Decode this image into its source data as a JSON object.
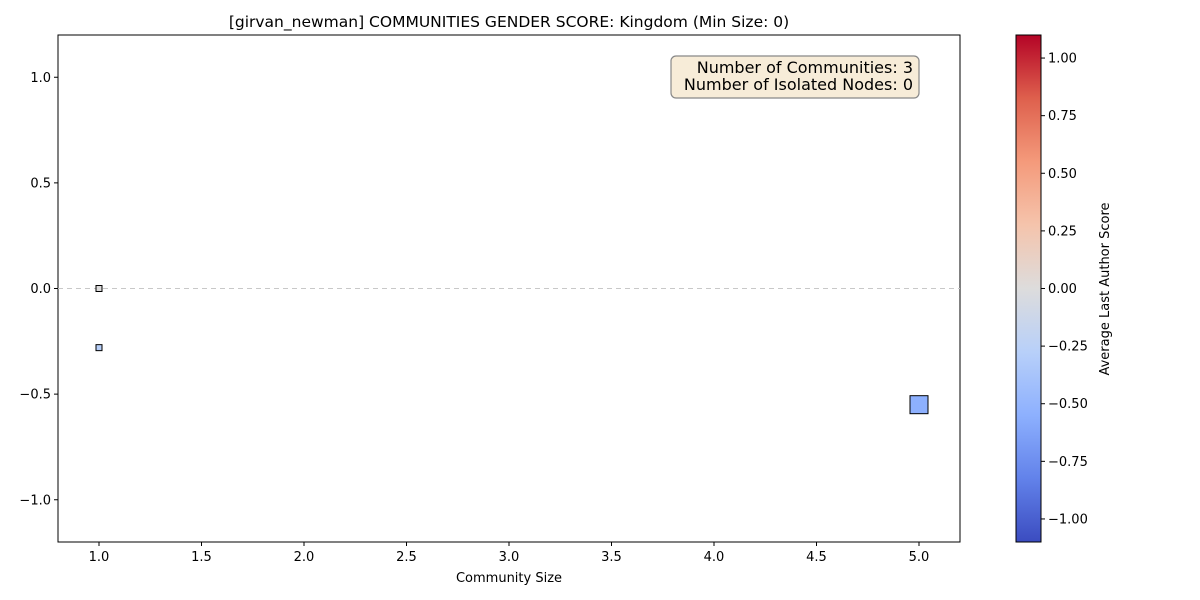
{
  "chart_data": {
    "type": "scatter",
    "title": "[girvan_newman] COMMUNITIES GENDER SCORE: Kingdom (Min Size: 0)",
    "xlabel": "Community Size",
    "ylabel": "",
    "xlim": [
      0.8,
      5.2
    ],
    "ylim": [
      -1.2,
      1.2
    ],
    "x_ticks": [
      1.0,
      1.5,
      2.0,
      2.5,
      3.0,
      3.5,
      4.0,
      4.5,
      5.0
    ],
    "x_tick_labels": [
      "1.0",
      "1.5",
      "2.0",
      "2.5",
      "3.0",
      "3.5",
      "4.0",
      "4.5",
      "5.0"
    ],
    "y_ticks": [
      1.0,
      0.5,
      0.0,
      -0.5,
      -1.0
    ],
    "y_tick_labels": [
      "1.0",
      "0.5",
      "0.0",
      "−0.5",
      "−1.0"
    ],
    "grid": false,
    "reference_line_y": 0.0,
    "marker": "square",
    "points": [
      {
        "x": 1.0,
        "y": 0.0,
        "color_value": 0.0
      },
      {
        "x": 1.0,
        "y": -0.28,
        "color_value": -0.28
      },
      {
        "x": 5.0,
        "y": -0.55,
        "color_value": -0.55
      }
    ],
    "annotations": [
      "Number of Communities: 3",
      "Number of Isolated Nodes: 0"
    ],
    "colorbar": {
      "label": "Average Last Author Score",
      "colormap": "coolwarm",
      "range": [
        -1.1,
        1.1
      ],
      "ticks": [
        1.0,
        0.75,
        0.5,
        0.25,
        0.0,
        -0.25,
        -0.5,
        -0.75,
        -1.0
      ],
      "tick_labels": [
        "1.00",
        "0.75",
        "0.50",
        "0.25",
        "0.00",
        "−0.25",
        "−0.50",
        "−0.75",
        "−1.00"
      ]
    }
  }
}
